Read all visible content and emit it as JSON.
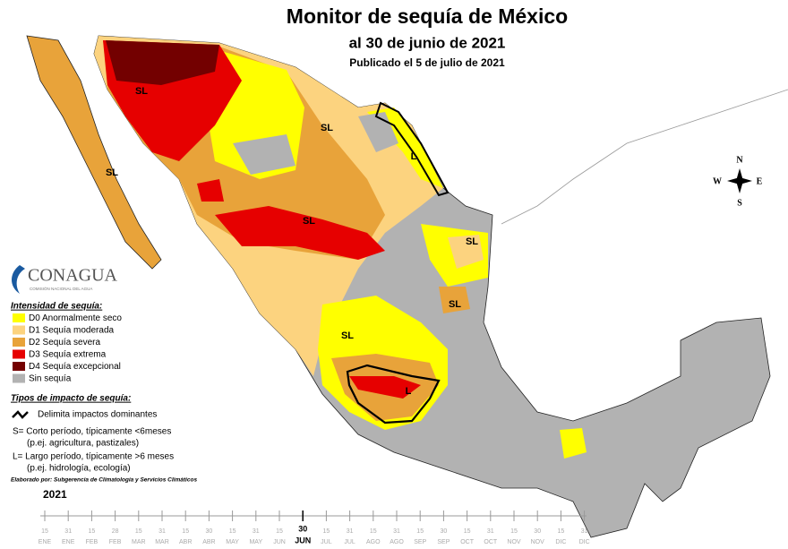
{
  "header": {
    "title": "Monitor de sequía de México",
    "subtitle": "al 30 de junio de 2021",
    "published": "Publicado el 5 de julio de 2021"
  },
  "compass": {
    "n": "N",
    "e": "E",
    "s": "S",
    "w": "W"
  },
  "map_labels": [
    "SL",
    "SL",
    "SL",
    "L",
    "SL",
    "SL",
    "SL",
    "SL",
    "L"
  ],
  "logo": {
    "name": "CONAGUA",
    "tagline": "COMISIÓN NACIONAL DEL AGUA"
  },
  "legend": {
    "intensity_title": "Intensidad de sequía:",
    "items": [
      {
        "label": "D0 Anormalmente seco",
        "color": "#ffff00"
      },
      {
        "label": "D1 Sequía moderada",
        "color": "#fcd37f"
      },
      {
        "label": "D2 Sequía severa",
        "color": "#e8a33a"
      },
      {
        "label": "D3 Sequía extrema",
        "color": "#e60000"
      },
      {
        "label": "D4 Sequía excepcional",
        "color": "#730000"
      },
      {
        "label": "Sin sequía",
        "color": "#b2b2b2"
      }
    ],
    "impact_title": "Tipos de impacto de sequía:",
    "delimits": "Delimita impactos dominantes",
    "short": "S= Corto período, típicamente <6meses",
    "short_example": "(p.ej. agricultura, pastizales)",
    "long": "L= Largo período, típicamente >6 meses",
    "long_example": "(p.ej. hidrología, ecología)",
    "credit": "Elaborado por: Subgerencia de Climatología y Servicios Climáticos"
  },
  "timeline": {
    "year": "2021",
    "ticks": [
      {
        "day": "15",
        "month": "ENE"
      },
      {
        "day": "31",
        "month": "ENE"
      },
      {
        "day": "15",
        "month": "FEB"
      },
      {
        "day": "28",
        "month": "FEB"
      },
      {
        "day": "15",
        "month": "MAR"
      },
      {
        "day": "31",
        "month": "MAR"
      },
      {
        "day": "15",
        "month": "ABR"
      },
      {
        "day": "30",
        "month": "ABR"
      },
      {
        "day": "15",
        "month": "MAY"
      },
      {
        "day": "31",
        "month": "MAY"
      },
      {
        "day": "15",
        "month": "JUN"
      },
      {
        "day": "30",
        "month": "JUN",
        "highlight": true
      },
      {
        "day": "15",
        "month": "JUL"
      },
      {
        "day": "31",
        "month": "JUL"
      },
      {
        "day": "15",
        "month": "AGO"
      },
      {
        "day": "31",
        "month": "AGO"
      },
      {
        "day": "15",
        "month": "SEP"
      },
      {
        "day": "30",
        "month": "SEP"
      },
      {
        "day": "15",
        "month": "OCT"
      },
      {
        "day": "31",
        "month": "OCT"
      },
      {
        "day": "15",
        "month": "NOV"
      },
      {
        "day": "30",
        "month": "NOV"
      },
      {
        "day": "15",
        "month": "DIC"
      },
      {
        "day": "31",
        "month": "DIC"
      }
    ]
  }
}
